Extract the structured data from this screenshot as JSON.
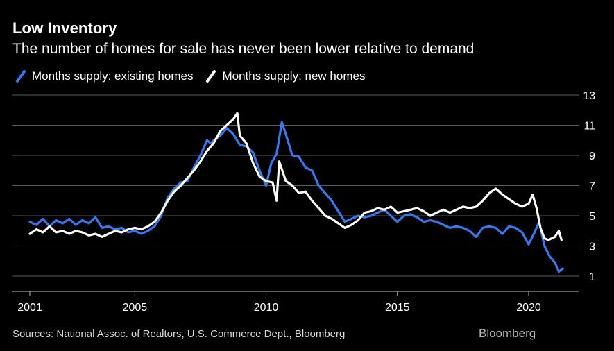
{
  "chart_data": {
    "type": "line",
    "title": "Low Inventory",
    "subtitle": "The number of homes for sale has never been lower relative to demand",
    "xlabel": "",
    "ylabel": "",
    "x_ticks": [
      "2001",
      "2005",
      "2010",
      "2015",
      "2020"
    ],
    "y_ticks": [
      "1",
      "3",
      "5",
      "7",
      "9",
      "11",
      "13"
    ],
    "xlim": [
      2001,
      2022.2
    ],
    "ylim": [
      0.2,
      13.5
    ],
    "grid": true,
    "legend_position": "top-left",
    "series": [
      {
        "name": "Months supply: existing homes",
        "color": "#2f7bf5",
        "points": [
          [
            2001.0,
            4.6
          ],
          [
            2001.25,
            4.4
          ],
          [
            2001.5,
            4.8
          ],
          [
            2001.75,
            4.3
          ],
          [
            2002.0,
            4.7
          ],
          [
            2002.25,
            4.5
          ],
          [
            2002.5,
            4.8
          ],
          [
            2002.75,
            4.4
          ],
          [
            2003.0,
            4.7
          ],
          [
            2003.25,
            4.5
          ],
          [
            2003.5,
            4.9
          ],
          [
            2003.75,
            4.2
          ],
          [
            2004.0,
            4.3
          ],
          [
            2004.25,
            4.1
          ],
          [
            2004.5,
            4.2
          ],
          [
            2004.75,
            3.9
          ],
          [
            2005.0,
            4.0
          ],
          [
            2005.25,
            3.8
          ],
          [
            2005.5,
            4.0
          ],
          [
            2005.75,
            4.3
          ],
          [
            2006.0,
            5.0
          ],
          [
            2006.25,
            6.2
          ],
          [
            2006.5,
            6.8
          ],
          [
            2006.75,
            7.2
          ],
          [
            2007.0,
            7.3
          ],
          [
            2007.25,
            8.2
          ],
          [
            2007.5,
            9.0
          ],
          [
            2007.75,
            10.0
          ],
          [
            2007.9,
            9.8
          ],
          [
            2008.0,
            10.0
          ],
          [
            2008.25,
            10.3
          ],
          [
            2008.5,
            10.8
          ],
          [
            2008.75,
            10.4
          ],
          [
            2009.0,
            9.7
          ],
          [
            2009.25,
            9.6
          ],
          [
            2009.5,
            9.2
          ],
          [
            2009.75,
            8.0
          ],
          [
            2010.0,
            7.0
          ],
          [
            2010.2,
            8.5
          ],
          [
            2010.4,
            9.1
          ],
          [
            2010.6,
            11.2
          ],
          [
            2010.75,
            10.4
          ],
          [
            2011.0,
            9.0
          ],
          [
            2011.25,
            8.9
          ],
          [
            2011.5,
            8.2
          ],
          [
            2011.75,
            8.0
          ],
          [
            2012.0,
            7.0
          ],
          [
            2012.25,
            6.5
          ],
          [
            2012.5,
            6.0
          ],
          [
            2012.75,
            5.3
          ],
          [
            2013.0,
            4.6
          ],
          [
            2013.25,
            4.8
          ],
          [
            2013.5,
            5.0
          ],
          [
            2013.75,
            4.9
          ],
          [
            2014.0,
            5.0
          ],
          [
            2014.25,
            5.2
          ],
          [
            2014.5,
            5.4
          ],
          [
            2014.75,
            5.0
          ],
          [
            2015.0,
            4.6
          ],
          [
            2015.25,
            5.0
          ],
          [
            2015.5,
            5.1
          ],
          [
            2015.75,
            4.9
          ],
          [
            2016.0,
            4.6
          ],
          [
            2016.25,
            4.7
          ],
          [
            2016.5,
            4.6
          ],
          [
            2016.75,
            4.4
          ],
          [
            2017.0,
            4.2
          ],
          [
            2017.25,
            4.3
          ],
          [
            2017.5,
            4.2
          ],
          [
            2017.75,
            4.0
          ],
          [
            2018.0,
            3.6
          ],
          [
            2018.25,
            4.2
          ],
          [
            2018.5,
            4.3
          ],
          [
            2018.75,
            4.2
          ],
          [
            2019.0,
            3.8
          ],
          [
            2019.25,
            4.3
          ],
          [
            2019.5,
            4.2
          ],
          [
            2019.75,
            3.9
          ],
          [
            2020.0,
            3.1
          ],
          [
            2020.25,
            4.0
          ],
          [
            2020.4,
            4.6
          ],
          [
            2020.6,
            3.0
          ],
          [
            2020.8,
            2.3
          ],
          [
            2021.0,
            1.9
          ],
          [
            2021.15,
            1.3
          ],
          [
            2021.3,
            1.5
          ]
        ]
      },
      {
        "name": "Months supply: new homes",
        "color": "#ffffff",
        "points": [
          [
            2001.0,
            3.8
          ],
          [
            2001.25,
            4.1
          ],
          [
            2001.5,
            3.9
          ],
          [
            2001.75,
            4.3
          ],
          [
            2002.0,
            3.9
          ],
          [
            2002.25,
            4.0
          ],
          [
            2002.5,
            3.8
          ],
          [
            2002.75,
            4.0
          ],
          [
            2003.0,
            3.9
          ],
          [
            2003.25,
            3.7
          ],
          [
            2003.5,
            3.8
          ],
          [
            2003.75,
            3.6
          ],
          [
            2004.0,
            3.8
          ],
          [
            2004.25,
            4.0
          ],
          [
            2004.5,
            3.9
          ],
          [
            2004.75,
            4.1
          ],
          [
            2005.0,
            4.2
          ],
          [
            2005.25,
            4.1
          ],
          [
            2005.5,
            4.3
          ],
          [
            2005.75,
            4.6
          ],
          [
            2006.0,
            5.2
          ],
          [
            2006.25,
            6.0
          ],
          [
            2006.5,
            6.6
          ],
          [
            2006.75,
            7.0
          ],
          [
            2007.0,
            7.5
          ],
          [
            2007.25,
            8.0
          ],
          [
            2007.5,
            8.6
          ],
          [
            2007.75,
            9.3
          ],
          [
            2008.0,
            9.8
          ],
          [
            2008.25,
            10.6
          ],
          [
            2008.5,
            11.0
          ],
          [
            2008.75,
            11.4
          ],
          [
            2008.9,
            11.8
          ],
          [
            2009.0,
            10.3
          ],
          [
            2009.25,
            9.8
          ],
          [
            2009.5,
            8.5
          ],
          [
            2009.75,
            7.6
          ],
          [
            2010.0,
            7.3
          ],
          [
            2010.25,
            7.2
          ],
          [
            2010.4,
            6.0
          ],
          [
            2010.5,
            8.6
          ],
          [
            2010.75,
            7.3
          ],
          [
            2011.0,
            7.0
          ],
          [
            2011.25,
            6.5
          ],
          [
            2011.5,
            6.6
          ],
          [
            2011.75,
            6.0
          ],
          [
            2012.0,
            5.5
          ],
          [
            2012.25,
            5.0
          ],
          [
            2012.5,
            4.8
          ],
          [
            2012.75,
            4.5
          ],
          [
            2013.0,
            4.2
          ],
          [
            2013.25,
            4.4
          ],
          [
            2013.5,
            4.7
          ],
          [
            2013.75,
            5.2
          ],
          [
            2014.0,
            5.3
          ],
          [
            2014.25,
            5.5
          ],
          [
            2014.5,
            5.4
          ],
          [
            2014.75,
            5.6
          ],
          [
            2015.0,
            5.2
          ],
          [
            2015.25,
            5.3
          ],
          [
            2015.5,
            5.4
          ],
          [
            2015.75,
            5.5
          ],
          [
            2016.0,
            5.3
          ],
          [
            2016.25,
            5.0
          ],
          [
            2016.5,
            5.2
          ],
          [
            2016.75,
            5.4
          ],
          [
            2017.0,
            5.2
          ],
          [
            2017.25,
            5.4
          ],
          [
            2017.5,
            5.6
          ],
          [
            2017.75,
            5.5
          ],
          [
            2018.0,
            5.6
          ],
          [
            2018.25,
            6.0
          ],
          [
            2018.5,
            6.5
          ],
          [
            2018.75,
            6.8
          ],
          [
            2019.0,
            6.4
          ],
          [
            2019.25,
            6.1
          ],
          [
            2019.5,
            5.8
          ],
          [
            2019.75,
            5.6
          ],
          [
            2020.0,
            5.8
          ],
          [
            2020.15,
            6.4
          ],
          [
            2020.3,
            5.5
          ],
          [
            2020.45,
            4.2
          ],
          [
            2020.6,
            3.5
          ],
          [
            2020.75,
            3.4
          ],
          [
            2021.0,
            3.6
          ],
          [
            2021.15,
            4.0
          ],
          [
            2021.25,
            3.4
          ]
        ]
      }
    ],
    "source": "Sources: National Assoc. of Realtors, U.S. Commerce Dept., Bloomberg",
    "brand": "Bloomberg"
  }
}
